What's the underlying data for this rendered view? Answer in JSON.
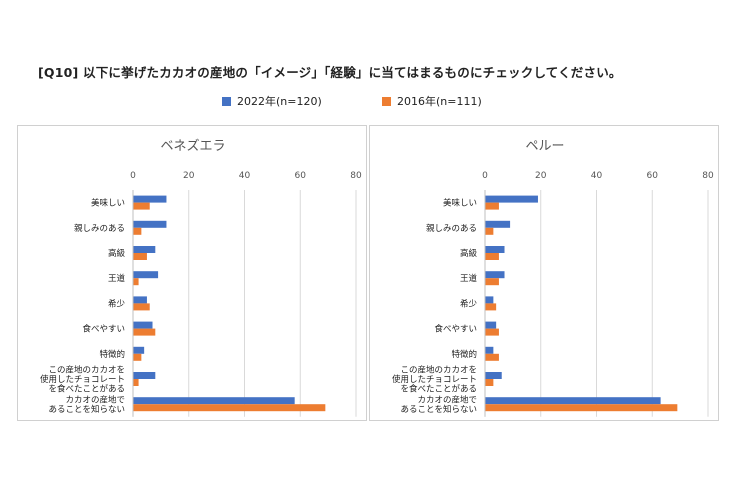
{
  "question": "[Q10] 以下に挙げたカカオの産地の「イメージ」「経験」に当てはまるものにチェックしてください。",
  "legend": [
    {
      "label": "2022年(n=120)",
      "color": "#4472c4"
    },
    {
      "label": "2016年(n=111)",
      "color": "#ed7d31"
    }
  ],
  "chart_data": [
    {
      "type": "bar",
      "orientation": "horizontal",
      "title": "ベネズエラ",
      "categories": [
        "美味しい",
        "親しみのある",
        "高級",
        "王道",
        "希少",
        "食べやすい",
        "特徴的",
        "この産地のカカオを\n使用したチョコレート\nを食べたことがある",
        "カカオの産地で\nあることを知らない"
      ],
      "series": [
        {
          "name": "2022年(n=120)",
          "color": "#4472c4",
          "values": [
            12,
            12,
            8,
            9,
            5,
            7,
            4,
            8,
            58
          ]
        },
        {
          "name": "2016年(n=111)",
          "color": "#ed7d31",
          "values": [
            6,
            3,
            5,
            2,
            6,
            8,
            3,
            2,
            69
          ]
        }
      ],
      "xlim": [
        0,
        80
      ],
      "xticks": [
        0,
        20,
        40,
        60,
        80
      ],
      "axis_position": "top",
      "grid": true
    },
    {
      "type": "bar",
      "orientation": "horizontal",
      "title": "ペルー",
      "categories": [
        "美味しい",
        "親しみのある",
        "高級",
        "王道",
        "希少",
        "食べやすい",
        "特徴的",
        "この産地のカカオを\n使用したチョコレート\nを食べたことがある",
        "カカオの産地で\nあることを知らない"
      ],
      "series": [
        {
          "name": "2022年(n=120)",
          "color": "#4472c4",
          "values": [
            19,
            9,
            7,
            7,
            3,
            4,
            3,
            6,
            63
          ]
        },
        {
          "name": "2016年(n=111)",
          "color": "#ed7d31",
          "values": [
            5,
            3,
            5,
            5,
            4,
            5,
            5,
            3,
            69
          ]
        }
      ],
      "xlim": [
        0,
        80
      ],
      "xticks": [
        0,
        20,
        40,
        60,
        80
      ],
      "axis_position": "top",
      "grid": true
    }
  ]
}
